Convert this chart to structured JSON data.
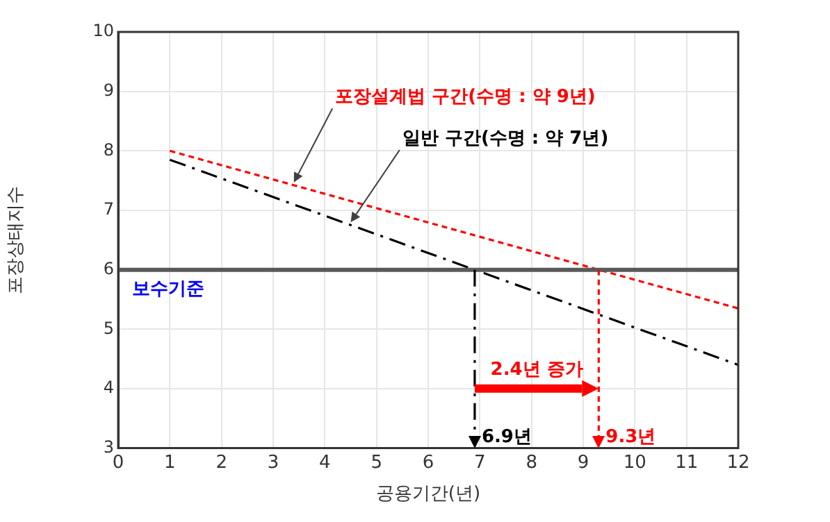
{
  "chart_data": {
    "type": "line",
    "xlabel": "공용기간(년)",
    "ylabel": "포장상태지수",
    "xlim": [
      0,
      12
    ],
    "xticks": [
      0,
      1,
      2,
      3,
      4,
      5,
      6,
      7,
      8,
      9,
      10,
      11,
      12
    ],
    "ylim": [
      3,
      10
    ],
    "yticks": [
      3,
      4,
      5,
      6,
      7,
      8,
      9,
      10
    ],
    "grid": true,
    "legend": false,
    "marker": "none",
    "series": [
      {
        "name": "포장설계법 구간(수명 : 약 9년)",
        "color": "#ff0000",
        "values": [
          8,
          5.35
        ],
        "line_style": "dotted"
      },
      {
        "name": "일반 구간(수명 : 약 7년)",
        "color": "#000000",
        "values": [
          7.85,
          4.4
        ],
        "line_style": "dashed"
      }
    ],
    "x": [
      1,
      12
    ],
    "ref_lines": [
      {
        "axis": "y",
        "value": 6,
        "label": "보수기준",
        "color": "#595959"
      },
      {
        "axis": "x",
        "value": 6.9,
        "label": "6.9년",
        "color": "#000000",
        "line_style": "dashed"
      },
      {
        "axis": "x",
        "value": 9.3,
        "label": "9.3년",
        "color": "#ff0000",
        "line_style": "dotted"
      }
    ],
    "annotations": [
      "2.4년 증가"
    ]
  }
}
